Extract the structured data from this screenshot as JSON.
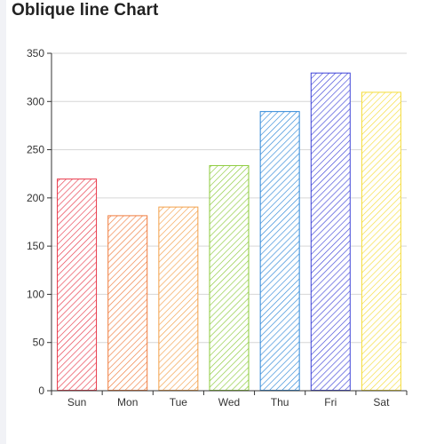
{
  "page": {
    "title": "Oblique line Chart"
  },
  "chart_data": {
    "type": "bar",
    "title": "Oblique line Chart",
    "categories": [
      "Sun",
      "Mon",
      "Tue",
      "Wed",
      "Thu",
      "Fri",
      "Sat"
    ],
    "values": [
      220,
      182,
      191,
      234,
      290,
      330,
      310
    ],
    "colors": [
      "#e8394a",
      "#f07c3e",
      "#f3a04a",
      "#8ccb3b",
      "#2f88d8",
      "#3f45d8",
      "#f5dd3a"
    ],
    "fill_pattern": "diagonal-hatch",
    "ylim": [
      0,
      350
    ],
    "yticks": [
      0,
      50,
      100,
      150,
      200,
      250,
      300,
      350
    ],
    "grid": true,
    "xlabel": "",
    "ylabel": ""
  }
}
